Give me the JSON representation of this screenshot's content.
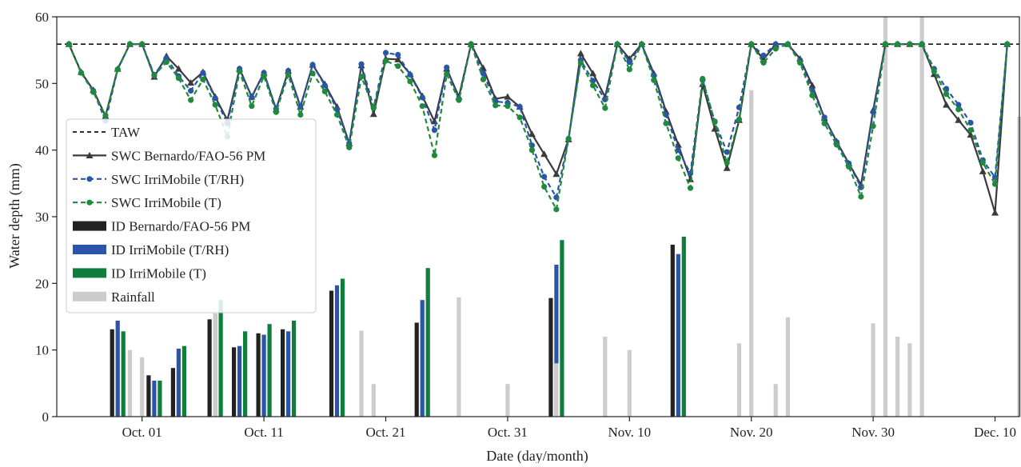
{
  "chart_data": {
    "type": "line",
    "title": "",
    "xlabel": "Date (day/month)",
    "ylabel": "Water depth (mm)",
    "xlim": [
      "2023-09-24",
      "2023-12-12"
    ],
    "ylim": [
      0,
      60
    ],
    "yticks": [
      0,
      10,
      20,
      30,
      40,
      50,
      60
    ],
    "xticks": [
      {
        "date": "2023-10-01",
        "label": "Oct. 01"
      },
      {
        "date": "2023-10-11",
        "label": "Oct. 11"
      },
      {
        "date": "2023-10-21",
        "label": "Oct. 21"
      },
      {
        "date": "2023-10-31",
        "label": "Oct. 31"
      },
      {
        "date": "2023-11-10",
        "label": "Nov. 10"
      },
      {
        "date": "2023-11-20",
        "label": "Nov. 20"
      },
      {
        "date": "2023-11-30",
        "label": "Nov. 30"
      },
      {
        "date": "2023-12-10",
        "label": "Dec. 10"
      }
    ],
    "grid": false,
    "legend_position": "center-left",
    "taw": {
      "name": "TAW",
      "value": 55.9,
      "color": "#111111"
    },
    "lines": [
      {
        "name": "SWC Bernardo/FAO-56 PM",
        "color": "#3a3a3a",
        "x": [
          "2023-09-25",
          "2023-09-26",
          "2023-09-27",
          "2023-09-28",
          "2023-09-29",
          "2023-09-30",
          "2023-10-01",
          "2023-10-02",
          "2023-10-03",
          "2023-10-04",
          "2023-10-05",
          "2023-10-06",
          "2023-10-07",
          "2023-10-08",
          "2023-10-09",
          "2023-10-10",
          "2023-10-11",
          "2023-10-12",
          "2023-10-13",
          "2023-10-14",
          "2023-10-15",
          "2023-10-16",
          "2023-10-17",
          "2023-10-18",
          "2023-10-19",
          "2023-10-20",
          "2023-10-21",
          "2023-10-22",
          "2023-10-23",
          "2023-10-24",
          "2023-10-25",
          "2023-10-26",
          "2023-10-27",
          "2023-10-28",
          "2023-10-29",
          "2023-10-30",
          "2023-10-31",
          "2023-11-01",
          "2023-11-02",
          "2023-11-03",
          "2023-11-04",
          "2023-11-05",
          "2023-11-06",
          "2023-11-07",
          "2023-11-08",
          "2023-11-09",
          "2023-11-10",
          "2023-11-11",
          "2023-11-12",
          "2023-11-13",
          "2023-11-14",
          "2023-11-15",
          "2023-11-16",
          "2023-11-17",
          "2023-11-18",
          "2023-11-19",
          "2023-11-20",
          "2023-11-21",
          "2023-11-22",
          "2023-11-23",
          "2023-11-24",
          "2023-11-25",
          "2023-11-26",
          "2023-11-27",
          "2023-11-28",
          "2023-11-29",
          "2023-11-30",
          "2023-12-01",
          "2023-12-02",
          "2023-12-03",
          "2023-12-04",
          "2023-12-05",
          "2023-12-06",
          "2023-12-07",
          "2023-12-08",
          "2023-12-09",
          "2023-12-10",
          "2023-12-11",
          "2023-12-12"
        ],
        "y": [
          55.9,
          51.7,
          49.0,
          45.1,
          52.2,
          55.9,
          55.9,
          51.0,
          54.1,
          52.2,
          50.1,
          51.7,
          48.0,
          44.5,
          52.2,
          48.0,
          51.6,
          46.1,
          51.9,
          46.5,
          52.8,
          49.9,
          46.5,
          41.0,
          52.7,
          45.4,
          53.7,
          53.6,
          51.4,
          48.1,
          44.3,
          52.2,
          48.0,
          55.9,
          52.3,
          47.7,
          48.0,
          46.5,
          42.4,
          39.4,
          36.4,
          41.6,
          54.5,
          51.5,
          48.0,
          55.9,
          53.7,
          55.9,
          51.5,
          45.8,
          40.8,
          35.6,
          49.9,
          43.2,
          37.3,
          44.5,
          55.9,
          53.6,
          55.9,
          55.9,
          53.7,
          49.7,
          44.8,
          41.3,
          38.0,
          34.8,
          46.0,
          55.9,
          55.9,
          55.9,
          55.9,
          51.4,
          46.8,
          44.5,
          42.3,
          36.8,
          30.6,
          55.9,
          null
        ]
      },
      {
        "name": "SWC IrriMobile (T/RH)",
        "color": "#2a55a8",
        "x": [
          "2023-09-25",
          "2023-09-26",
          "2023-09-27",
          "2023-09-28",
          "2023-09-29",
          "2023-09-30",
          "2023-10-01",
          "2023-10-02",
          "2023-10-03",
          "2023-10-04",
          "2023-10-05",
          "2023-10-06",
          "2023-10-07",
          "2023-10-08",
          "2023-10-09",
          "2023-10-10",
          "2023-10-11",
          "2023-10-12",
          "2023-10-13",
          "2023-10-14",
          "2023-10-15",
          "2023-10-16",
          "2023-10-17",
          "2023-10-18",
          "2023-10-19",
          "2023-10-20",
          "2023-10-21",
          "2023-10-22",
          "2023-10-23",
          "2023-10-24",
          "2023-10-25",
          "2023-10-26",
          "2023-10-27",
          "2023-10-28",
          "2023-10-29",
          "2023-10-30",
          "2023-10-31",
          "2023-11-01",
          "2023-11-02",
          "2023-11-03",
          "2023-11-04",
          "2023-11-05",
          "2023-11-06",
          "2023-11-07",
          "2023-11-08",
          "2023-11-09",
          "2023-11-10",
          "2023-11-11",
          "2023-11-12",
          "2023-11-13",
          "2023-11-14",
          "2023-11-15",
          "2023-11-16",
          "2023-11-17",
          "2023-11-18",
          "2023-11-19",
          "2023-11-20",
          "2023-11-21",
          "2023-11-22",
          "2023-11-23",
          "2023-11-24",
          "2023-11-25",
          "2023-11-26",
          "2023-11-27",
          "2023-11-28",
          "2023-11-29",
          "2023-11-30",
          "2023-12-01",
          "2023-12-02",
          "2023-12-03",
          "2023-12-04",
          "2023-12-05",
          "2023-12-06",
          "2023-12-07",
          "2023-12-08",
          "2023-12-09",
          "2023-12-10",
          "2023-12-11"
        ],
        "y": [
          55.9,
          51.6,
          48.9,
          44.4,
          52.1,
          55.9,
          55.9,
          51.3,
          53.8,
          51.1,
          48.9,
          51.6,
          47.8,
          44.0,
          52.2,
          47.9,
          51.6,
          46.2,
          51.9,
          46.6,
          52.8,
          49.7,
          46.1,
          41.0,
          52.9,
          46.4,
          54.6,
          54.3,
          51.3,
          47.9,
          43.0,
          52.4,
          47.6,
          55.9,
          51.5,
          47.3,
          47.1,
          46.5,
          40.7,
          36.0,
          32.9,
          41.7,
          53.5,
          50.4,
          47.6,
          55.9,
          53.2,
          55.9,
          51.2,
          45.3,
          40.0,
          36.5,
          50.5,
          44.3,
          39.7,
          46.4,
          55.9,
          54.2,
          55.9,
          55.9,
          53.5,
          49.0,
          44.9,
          41.2,
          38.0,
          34.4,
          45.7,
          55.9,
          55.9,
          55.9,
          55.9,
          52.2,
          49.2,
          46.8,
          44.1,
          38.5,
          35.9,
          55.9
        ]
      },
      {
        "name": "SWC IrriMobile (T)",
        "color": "#1f8a3e",
        "x": [
          "2023-09-25",
          "2023-09-26",
          "2023-09-27",
          "2023-09-28",
          "2023-09-29",
          "2023-09-30",
          "2023-10-01",
          "2023-10-02",
          "2023-10-03",
          "2023-10-04",
          "2023-10-05",
          "2023-10-06",
          "2023-10-07",
          "2023-10-08",
          "2023-10-09",
          "2023-10-10",
          "2023-10-11",
          "2023-10-12",
          "2023-10-13",
          "2023-10-14",
          "2023-10-15",
          "2023-10-16",
          "2023-10-17",
          "2023-10-18",
          "2023-10-19",
          "2023-10-20",
          "2023-10-21",
          "2023-10-22",
          "2023-10-23",
          "2023-10-24",
          "2023-10-25",
          "2023-10-26",
          "2023-10-27",
          "2023-10-28",
          "2023-10-29",
          "2023-10-30",
          "2023-10-31",
          "2023-11-01",
          "2023-11-02",
          "2023-11-03",
          "2023-11-04",
          "2023-11-05",
          "2023-11-06",
          "2023-11-07",
          "2023-11-08",
          "2023-11-09",
          "2023-11-10",
          "2023-11-11",
          "2023-11-12",
          "2023-11-13",
          "2023-11-14",
          "2023-11-15",
          "2023-11-16",
          "2023-11-17",
          "2023-11-18",
          "2023-11-19",
          "2023-11-20",
          "2023-11-21",
          "2023-11-22",
          "2023-11-23",
          "2023-11-24",
          "2023-11-25",
          "2023-11-26",
          "2023-11-27",
          "2023-11-28",
          "2023-11-29",
          "2023-11-30",
          "2023-12-01",
          "2023-12-02",
          "2023-12-03",
          "2023-12-04",
          "2023-12-05",
          "2023-12-06",
          "2023-12-07",
          "2023-12-08",
          "2023-12-09",
          "2023-12-10",
          "2023-12-11"
        ],
        "y": [
          55.9,
          51.6,
          48.7,
          45.2,
          52.1,
          55.9,
          55.9,
          51.2,
          53.2,
          50.8,
          47.5,
          50.6,
          46.8,
          42.0,
          51.8,
          46.6,
          51.1,
          45.7,
          51.3,
          45.3,
          51.5,
          48.8,
          45.3,
          40.4,
          51.0,
          46.3,
          53.4,
          52.6,
          50.3,
          46.6,
          39.2,
          51.4,
          47.5,
          55.9,
          50.6,
          46.7,
          46.6,
          44.9,
          40.0,
          34.5,
          31.1,
          41.7,
          53.1,
          49.7,
          46.3,
          55.9,
          52.1,
          55.9,
          50.5,
          44.0,
          38.8,
          34.3,
          50.7,
          44.2,
          38.1,
          44.6,
          55.9,
          53.1,
          55.2,
          55.9,
          53.1,
          48.2,
          44.0,
          40.8,
          37.5,
          33.0,
          43.6,
          55.9,
          55.9,
          55.9,
          55.9,
          51.8,
          48.4,
          46.1,
          43.0,
          38.1,
          34.9,
          55.9
        ]
      }
    ],
    "bars": [
      {
        "name": "ID Bernardo/FAO-56 PM",
        "color": "#222222",
        "points": [
          [
            "2023-09-29",
            13.1
          ],
          [
            "2023-10-02",
            6.2
          ],
          [
            "2023-10-04",
            7.3
          ],
          [
            "2023-10-07",
            14.6
          ],
          [
            "2023-10-09",
            10.4
          ],
          [
            "2023-10-11",
            12.5
          ],
          [
            "2023-10-13",
            13.1
          ],
          [
            "2023-10-17",
            18.9
          ],
          [
            "2023-10-24",
            14.1
          ],
          [
            "2023-11-04",
            17.8
          ],
          [
            "2023-11-14",
            25.8
          ]
        ]
      },
      {
        "name": "ID IrriMobile (T/RH)",
        "color": "#2a55a8",
        "points": [
          [
            "2023-09-29",
            14.4
          ],
          [
            "2023-10-02",
            5.4
          ],
          [
            "2023-10-04",
            10.2
          ],
          [
            "2023-10-07",
            15.4
          ],
          [
            "2023-10-09",
            10.6
          ],
          [
            "2023-10-11",
            12.3
          ],
          [
            "2023-10-13",
            12.8
          ],
          [
            "2023-10-17",
            19.7
          ],
          [
            "2023-10-24",
            17.5
          ],
          [
            "2023-11-04",
            22.8
          ],
          [
            "2023-11-14",
            24.4
          ]
        ]
      },
      {
        "name": "ID IrriMobile (T)",
        "color": "#0f7d3c",
        "points": [
          [
            "2023-09-29",
            12.8
          ],
          [
            "2023-10-02",
            5.4
          ],
          [
            "2023-10-04",
            10.6
          ],
          [
            "2023-10-07",
            17.5
          ],
          [
            "2023-10-09",
            12.8
          ],
          [
            "2023-10-11",
            13.9
          ],
          [
            "2023-10-13",
            14.4
          ],
          [
            "2023-10-17",
            20.7
          ],
          [
            "2023-10-24",
            22.3
          ],
          [
            "2023-11-04",
            26.5
          ],
          [
            "2023-11-14",
            27.0
          ]
        ]
      },
      {
        "name": "Rainfall",
        "color": "#cccccc",
        "points": [
          [
            "2023-09-30",
            10.0
          ],
          [
            "2023-10-01",
            8.9
          ],
          [
            "2023-10-07",
            15.5
          ],
          [
            "2023-10-19",
            12.9
          ],
          [
            "2023-10-20",
            4.9
          ],
          [
            "2023-10-27",
            17.9
          ],
          [
            "2023-10-31",
            4.9
          ],
          [
            "2023-11-04",
            8.0
          ],
          [
            "2023-11-08",
            12.0
          ],
          [
            "2023-11-10",
            10.0
          ],
          [
            "2023-11-19",
            11.0
          ],
          [
            "2023-11-20",
            49.0
          ],
          [
            "2023-11-22",
            4.9
          ],
          [
            "2023-11-23",
            14.9
          ],
          [
            "2023-11-30",
            14.0
          ],
          [
            "2023-12-01",
            60.0
          ],
          [
            "2023-12-02",
            12.0
          ],
          [
            "2023-12-03",
            11.0
          ],
          [
            "2023-12-04",
            60.0
          ],
          [
            "2023-12-12",
            45.0
          ]
        ]
      }
    ]
  }
}
